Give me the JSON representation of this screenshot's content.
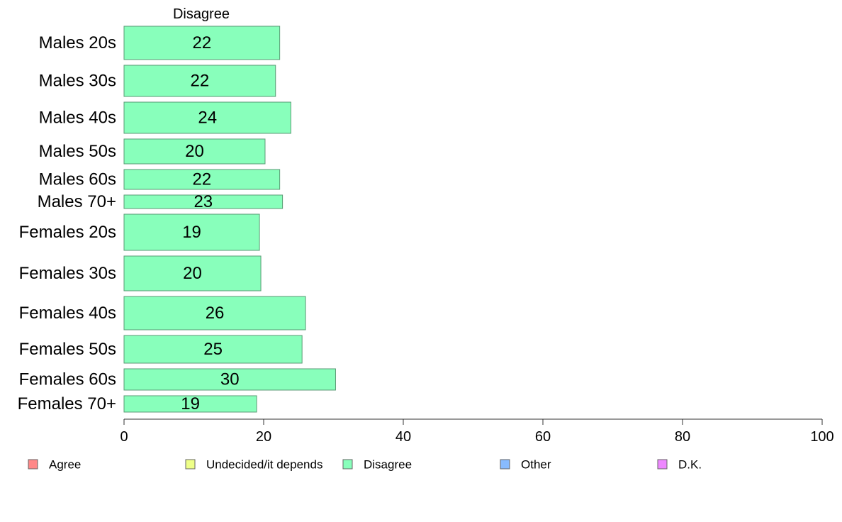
{
  "chart_data": {
    "type": "bar",
    "orientation": "horizontal",
    "stacked": true,
    "title": "Disagree",
    "categories": [
      "Males 20s",
      "Males 30s",
      "Males 40s",
      "Males 50s",
      "Males 60s",
      "Males 70+",
      "Females 20s",
      "Females 30s",
      "Females 40s",
      "Females 50s",
      "Females 60s",
      "Females 70+"
    ],
    "series": [
      {
        "name": "Disagree",
        "color": "#88ffbb",
        "values": [
          22.3,
          21.7,
          23.9,
          20.2,
          22.3,
          22.7,
          19.4,
          19.6,
          26.0,
          25.5,
          30.3,
          19.0
        ],
        "labels": [
          "22",
          "22",
          "24",
          "20",
          "22",
          "23",
          "19",
          "20",
          "26",
          "25",
          "30",
          "19"
        ]
      }
    ],
    "xlim": [
      0,
      100
    ],
    "xticks": [
      "0",
      "20",
      "40",
      "60",
      "80",
      "100"
    ],
    "grid": false,
    "legend": {
      "placement": "bottom",
      "items": [
        {
          "label": "Agree",
          "color": "#ff8888"
        },
        {
          "label": "Undecided/it depends",
          "color": "#eeff88"
        },
        {
          "label": "Disagree",
          "color": "#88ffbb"
        },
        {
          "label": "Other",
          "color": "#88bbff"
        },
        {
          "label": "D.K.",
          "color": "#ee88ff"
        }
      ]
    }
  }
}
